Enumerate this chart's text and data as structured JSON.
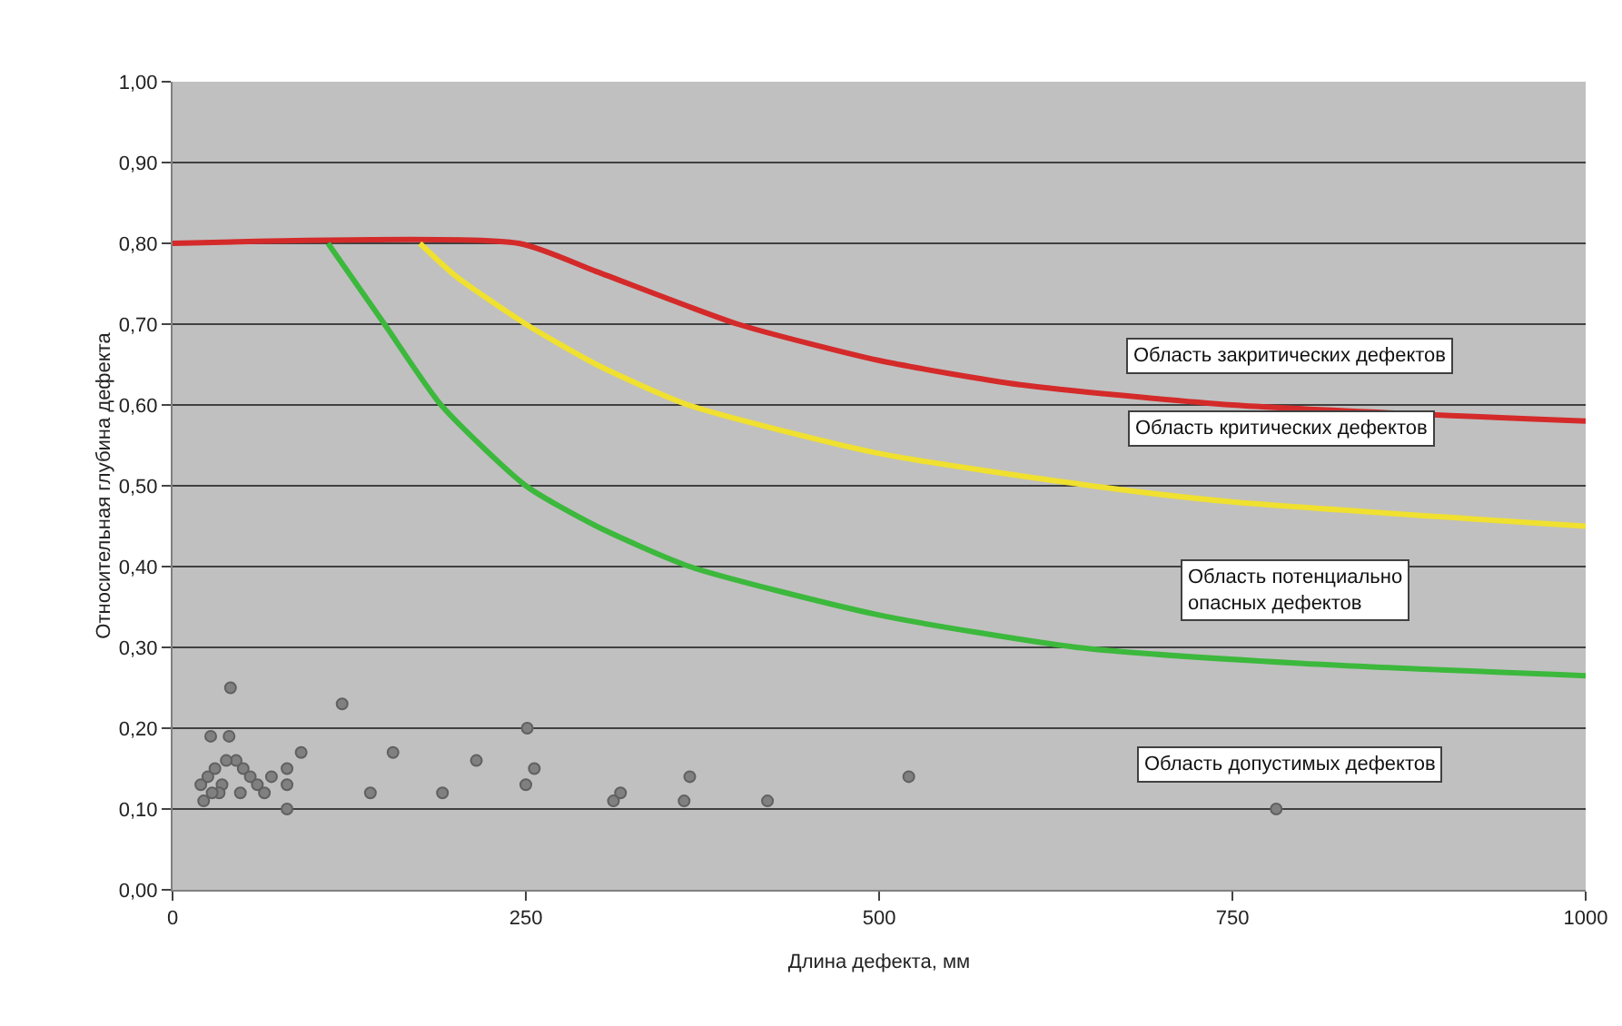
{
  "chart_data": {
    "type": "scatter",
    "xlabel": "Длина дефекта, мм",
    "ylabel": "Относительная глубина дефекта",
    "xlim": [
      0,
      1000
    ],
    "xticks": [
      0,
      250,
      500,
      750,
      1000
    ],
    "ylim": [
      0,
      1
    ],
    "yticks": [
      {
        "value": 0,
        "label": "0,00"
      },
      {
        "value": 0.1,
        "label": "0,10"
      },
      {
        "value": 0.2,
        "label": "0,20"
      },
      {
        "value": 0.3,
        "label": "0,30"
      },
      {
        "value": 0.4,
        "label": "0,40"
      },
      {
        "value": 0.5,
        "label": "0,50"
      },
      {
        "value": 0.6,
        "label": "0,60"
      },
      {
        "value": 0.7,
        "label": "0,70"
      },
      {
        "value": 0.8,
        "label": "0,80"
      },
      {
        "value": 0.9,
        "label": "0,90"
      },
      {
        "value": 1,
        "label": "1,00"
      }
    ],
    "grid": "y",
    "series": [
      {
        "type": "line",
        "color": "#d42a2a",
        "x": [
          0,
          245,
          300,
          400,
          500,
          600,
          750,
          1000
        ],
        "values": [
          0.8,
          0.8,
          0.765,
          0.7,
          0.655,
          0.625,
          0.6,
          0.58
        ]
      },
      {
        "type": "line",
        "color": "#f0e030",
        "x": [
          175,
          200,
          250,
          300,
          365,
          500,
          650,
          750,
          1000
        ],
        "values": [
          0.8,
          0.76,
          0.7,
          0.65,
          0.6,
          0.54,
          0.5,
          0.48,
          0.45
        ]
      },
      {
        "type": "line",
        "color": "#3cb83c",
        "x": [
          110,
          150,
          190,
          250,
          300,
          366,
          500,
          640,
          800,
          1000
        ],
        "values": [
          0.8,
          0.7,
          0.6,
          0.5,
          0.45,
          0.4,
          0.34,
          0.3,
          0.28,
          0.265
        ]
      },
      {
        "marker": "circle",
        "color": "#808080",
        "x": [
          41,
          120,
          27,
          40,
          91,
          156,
          215,
          140,
          191,
          251,
          250,
          81,
          81,
          81,
          256,
          317,
          312,
          366,
          362,
          421,
          521,
          781,
          20,
          25,
          30,
          35,
          45,
          50,
          55,
          60,
          65,
          70,
          22,
          33,
          48,
          28,
          38
        ],
        "values": [
          0.25,
          0.23,
          0.19,
          0.19,
          0.17,
          0.17,
          0.16,
          0.12,
          0.12,
          0.2,
          0.13,
          0.15,
          0.13,
          0.1,
          0.15,
          0.12,
          0.11,
          0.14,
          0.11,
          0.11,
          0.14,
          0.1,
          0.13,
          0.14,
          0.15,
          0.13,
          0.16,
          0.15,
          0.14,
          0.13,
          0.12,
          0.14,
          0.11,
          0.12,
          0.12,
          0.12,
          0.16
        ]
      }
    ],
    "annotations": [
      "Область закритических дефектов",
      "Область критических дефектов",
      "Область потенциально\nопасных дефектов",
      "Область допустимых дефектов"
    ]
  }
}
